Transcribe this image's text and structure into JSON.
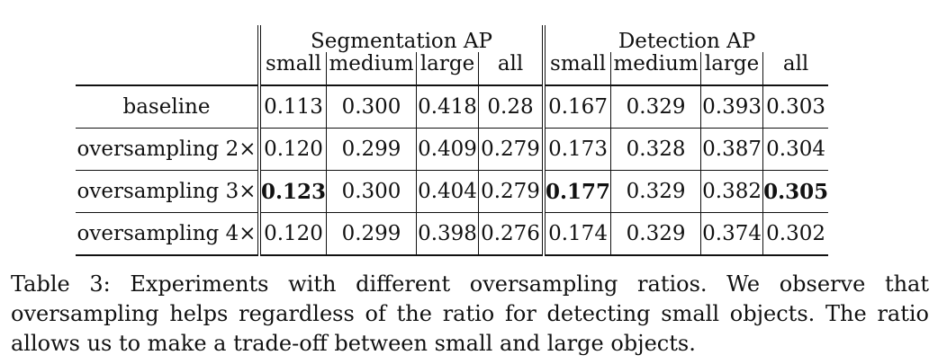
{
  "table": {
    "group_headers": [
      "Segmentation AP",
      "Detection AP"
    ],
    "columns": [
      "small",
      "medium",
      "large",
      "all",
      "small",
      "medium",
      "large",
      "all"
    ],
    "rows": [
      {
        "name": "baseline",
        "values": [
          "0.113",
          "0.300",
          "0.418",
          "0.28",
          "0.167",
          "0.329",
          "0.393",
          "0.303"
        ],
        "bold": [
          false,
          false,
          false,
          false,
          false,
          false,
          false,
          false
        ]
      },
      {
        "name": "oversampling 2×",
        "values": [
          "0.120",
          "0.299",
          "0.409",
          "0.279",
          "0.173",
          "0.328",
          "0.387",
          "0.304"
        ],
        "bold": [
          false,
          false,
          false,
          false,
          false,
          false,
          false,
          false
        ]
      },
      {
        "name": "oversampling 3×",
        "values": [
          "0.123",
          "0.300",
          "0.404",
          "0.279",
          "0.177",
          "0.329",
          "0.382",
          "0.305"
        ],
        "bold": [
          true,
          false,
          false,
          false,
          true,
          false,
          false,
          true
        ]
      },
      {
        "name": "oversampling 4×",
        "values": [
          "0.120",
          "0.299",
          "0.398",
          "0.276",
          "0.174",
          "0.329",
          "0.374",
          "0.302"
        ],
        "bold": [
          false,
          false,
          false,
          false,
          false,
          false,
          false,
          false
        ]
      }
    ]
  },
  "caption": "Table 3: Experiments with different oversampling ratios. We observe that oversampling helps regardless of the ratio for detecting small objects. The ratio allows us to make a trade-off between small and large objects."
}
